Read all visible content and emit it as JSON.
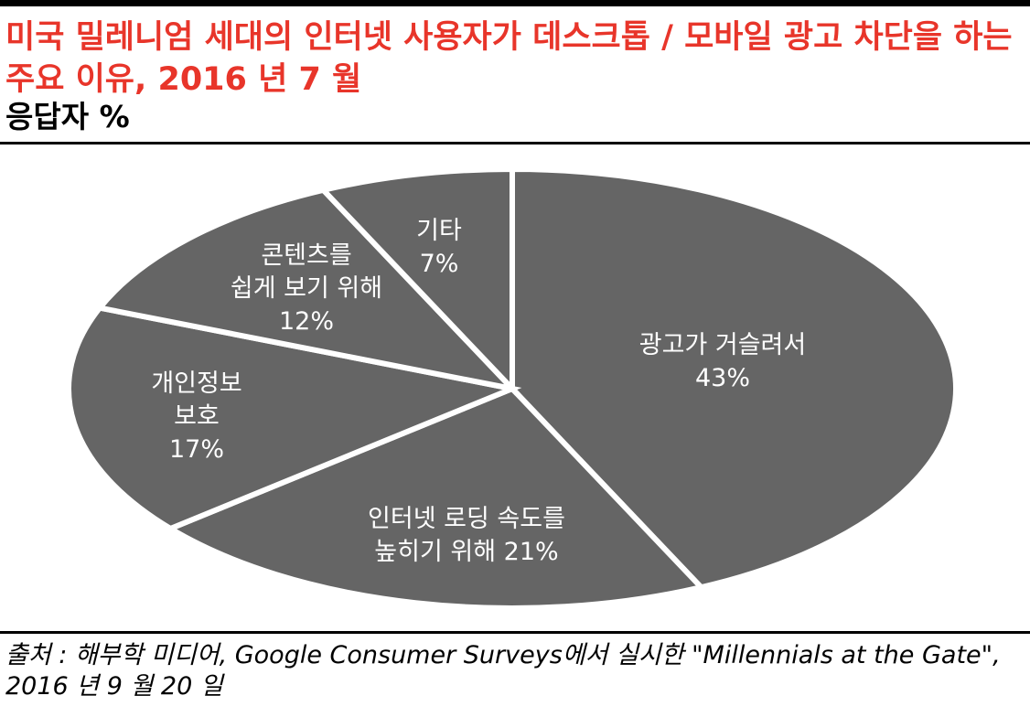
{
  "header": {
    "title": "미국 밀레니엄 세대의 인터넷 사용자가 데스크톱 / 모바일 광고 차단을 하는 주요 이유, 2016 년 7 월",
    "subtitle": "응답자 %"
  },
  "source": {
    "text": "출처 : 해부학 미디어, Google Consumer Surveys에서 실시한 \"Millennials at the Gate\", 2016 년 9 월 20 일"
  },
  "colors": {
    "title": "#e8352a",
    "slice_fill": "#656565",
    "slice_border": "#ffffff",
    "label": "#ffffff"
  },
  "chart_data": {
    "type": "pie",
    "title": "미국 밀레니엄 세대의 인터넷 사용자가 데스크톱 / 모바일 광고 차단을 하는 주요 이유, 2016 년 7 월",
    "subtitle": "응답자 %",
    "unit": "%",
    "slices": [
      {
        "lines": [
          "광고가 거슬려서",
          "43%"
        ],
        "value": 43
      },
      {
        "lines": [
          "인터넷 로딩 속도를",
          "높히기 위해 21%"
        ],
        "value": 21
      },
      {
        "lines": [
          "개인정보",
          "보호",
          "17%"
        ],
        "value": 17
      },
      {
        "lines": [
          "콘텐츠를",
          "쉽게 보기 위해",
          "12%"
        ],
        "value": 12
      },
      {
        "lines": [
          "기타",
          "7%"
        ],
        "value": 7
      }
    ]
  }
}
